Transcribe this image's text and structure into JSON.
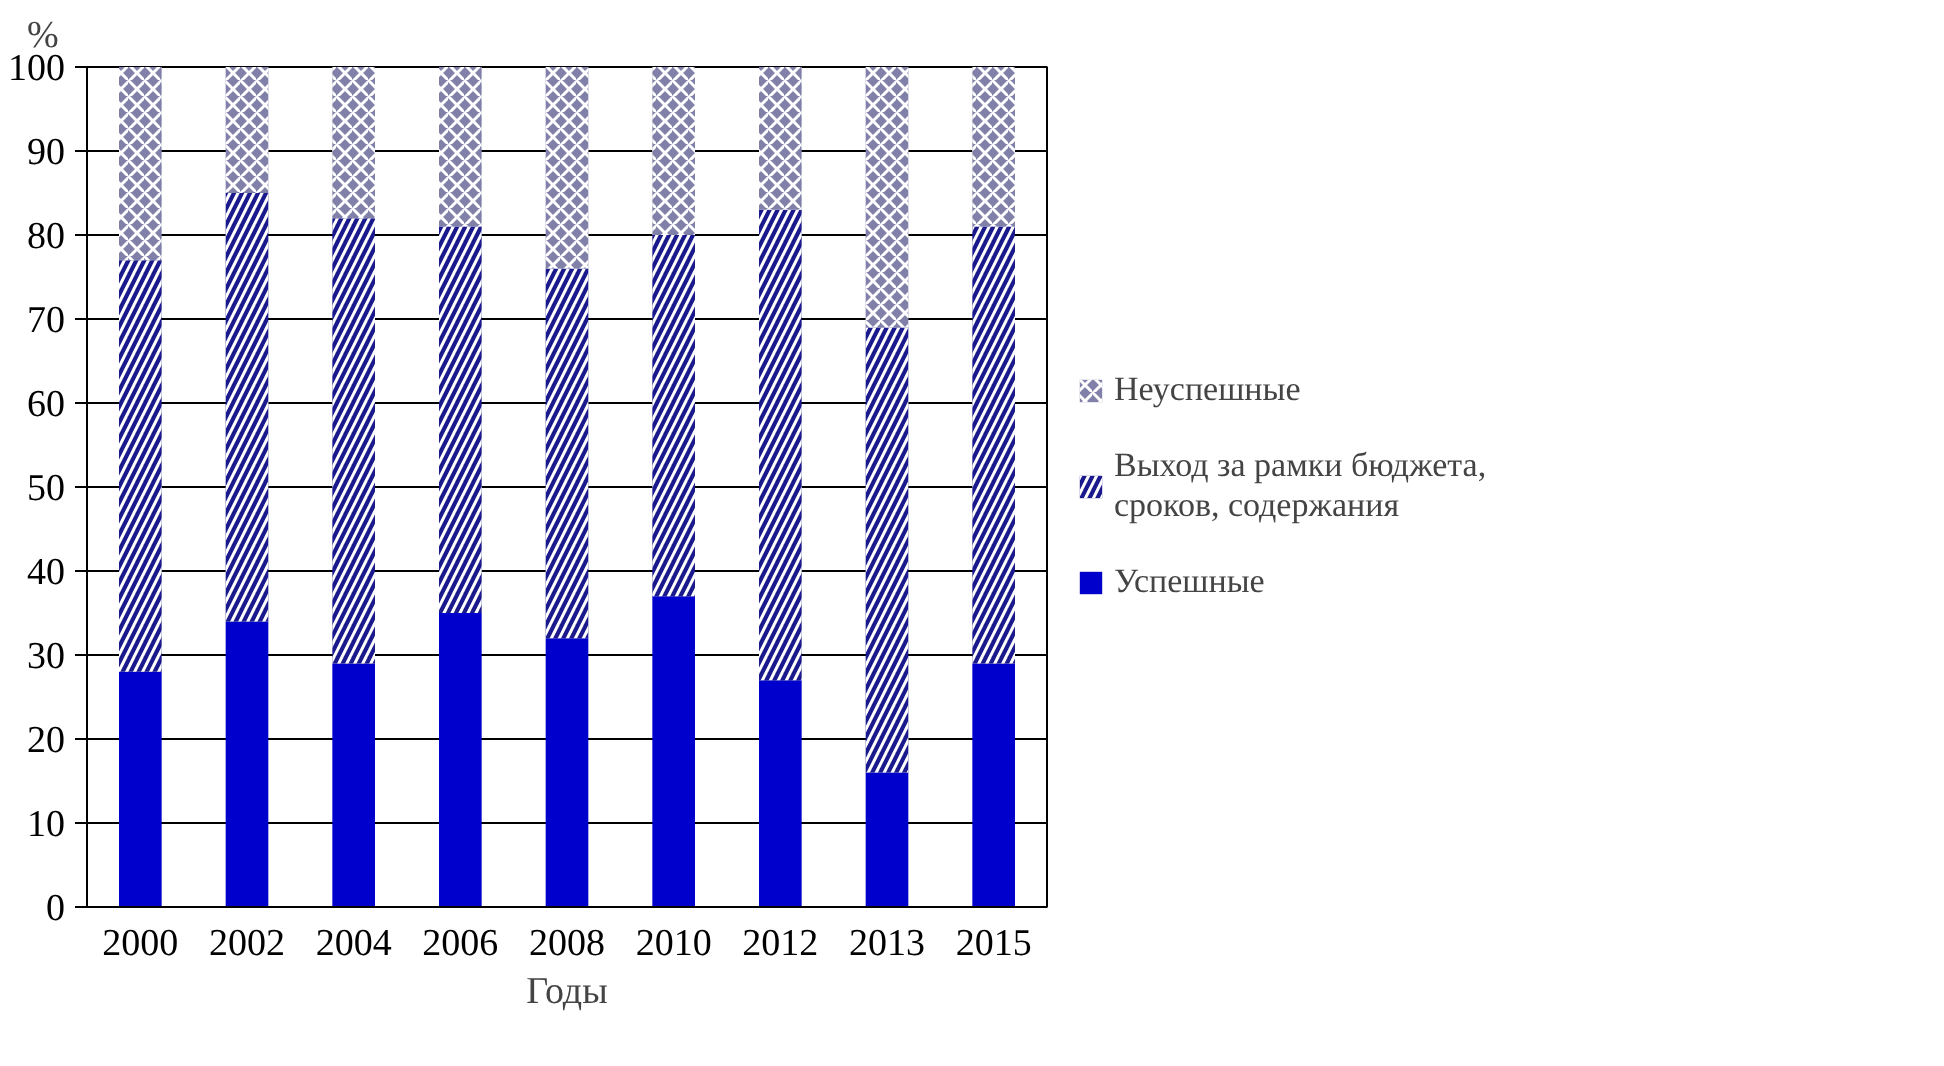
{
  "chart_data": {
    "type": "bar",
    "stacked": true,
    "xlabel": "Годы",
    "ylabel": "%",
    "categories": [
      "2000",
      "2002",
      "2004",
      "2006",
      "2008",
      "2010",
      "2012",
      "2013",
      "2015"
    ],
    "series": [
      {
        "name": "Успешные",
        "color": "#0000cc",
        "values": [
          28,
          34,
          29,
          35,
          32,
          37,
          27,
          16,
          29
        ]
      },
      {
        "name": "Выход за рамки бюджета, сроков, содержания",
        "color": "#1a1a8c",
        "values": [
          49,
          51,
          53,
          46,
          44,
          43,
          56,
          53,
          52
        ]
      },
      {
        "name": "Неуспешные",
        "color": "#8080a8",
        "values": [
          23,
          15,
          18,
          19,
          24,
          20,
          17,
          31,
          19
        ]
      }
    ],
    "ylim": [
      0,
      100
    ],
    "yticks": [
      0,
      10,
      20,
      30,
      40,
      50,
      60,
      70,
      80,
      90,
      100
    ],
    "grid": "y",
    "legend": "right"
  }
}
